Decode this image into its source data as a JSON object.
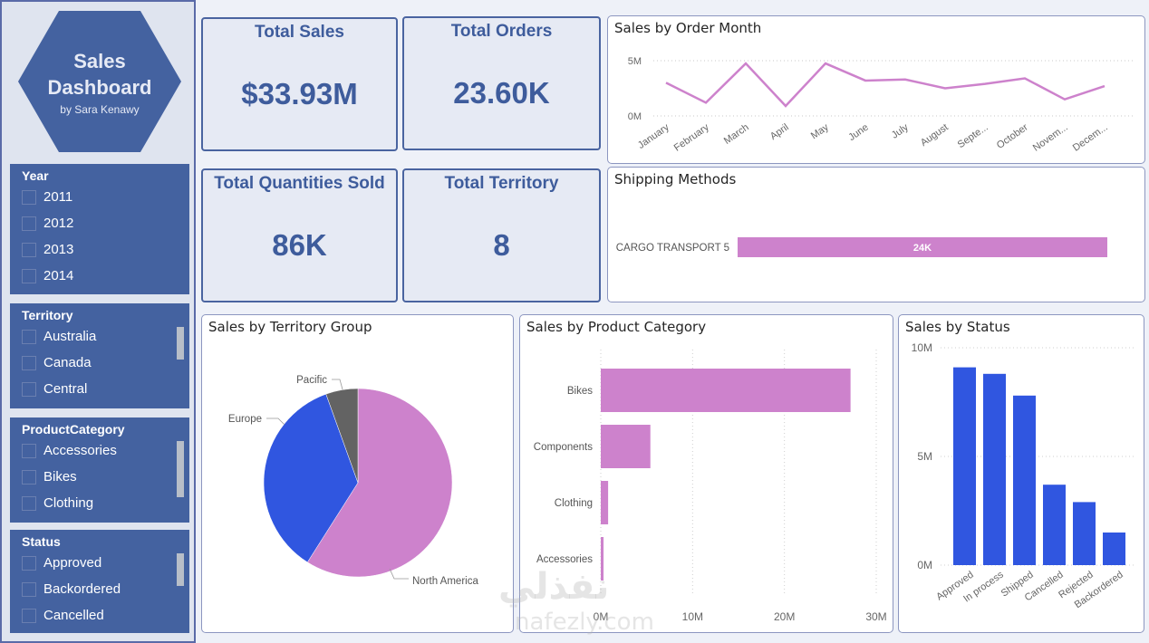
{
  "brand": {
    "title_line1": "Sales",
    "title_line2": "Dashboard",
    "author": "by Sara Kenawy"
  },
  "slicers": [
    {
      "title": "Year",
      "items": [
        "2011",
        "2012",
        "2013",
        "2014"
      ],
      "scroll": false
    },
    {
      "title": "Territory",
      "items": [
        "Australia",
        "Canada",
        "Central"
      ],
      "scroll": true
    },
    {
      "title": "ProductCategory",
      "items": [
        "Accessories",
        "Bikes",
        "Clothing"
      ],
      "scroll": true
    },
    {
      "title": "Status",
      "items": [
        "Approved",
        "Backordered",
        "Cancelled"
      ],
      "scroll": true
    }
  ],
  "kpis": [
    {
      "label": "Total Sales",
      "value": "$33.93M"
    },
    {
      "label": "Total Orders",
      "value": "23.60K"
    },
    {
      "label": "Total Quantities Sold",
      "value": "86K"
    },
    {
      "label": "Total Territory",
      "value": "8"
    }
  ],
  "colors": {
    "accent": "#cd82cc",
    "blue": "#3056e0",
    "gray": "#636363",
    "brand": "#4462a0"
  },
  "watermark": {
    "arabic": "نفذلي",
    "latin": "nafezly.com"
  },
  "chart_data": [
    {
      "type": "line",
      "title": "Sales by Order Month",
      "x": [
        "January",
        "February",
        "March",
        "April",
        "May",
        "June",
        "July",
        "August",
        "Septe...",
        "October",
        "Novem...",
        "Decem..."
      ],
      "values": [
        3.0,
        1.2,
        4.75,
        0.9,
        4.75,
        3.2,
        3.3,
        2.5,
        2.9,
        3.4,
        1.5,
        2.7
      ],
      "unit": "M",
      "yticks": [
        "0M",
        "5M"
      ],
      "ylim": [
        0,
        5
      ],
      "grid": true
    },
    {
      "type": "bar",
      "orientation": "horizontal",
      "title": "Shipping Methods",
      "categories": [
        "CARGO TRANSPORT 5"
      ],
      "values": [
        24
      ],
      "data_labels": [
        "24K"
      ],
      "unit": "K"
    },
    {
      "type": "pie",
      "title": "Sales by Territory Group",
      "categories": [
        "North America",
        "Europe",
        "Pacific"
      ],
      "values": [
        59,
        35.5,
        5.5
      ],
      "unit": "%"
    },
    {
      "type": "bar",
      "orientation": "horizontal",
      "title": "Sales by Product Category",
      "categories": [
        "Bikes",
        "Components",
        "Clothing",
        "Accessories"
      ],
      "values": [
        27.2,
        5.4,
        0.8,
        0.3
      ],
      "unit": "M",
      "xticks": [
        "0M",
        "10M",
        "20M",
        "30M"
      ],
      "xlim": [
        0,
        30
      ],
      "grid": true
    },
    {
      "type": "bar",
      "orientation": "vertical",
      "title": "Sales by Status",
      "categories": [
        "Approved",
        "In process",
        "Shipped",
        "Cancelled",
        "Rejected",
        "Backordered"
      ],
      "values": [
        9.1,
        8.8,
        7.8,
        3.7,
        2.9,
        1.5
      ],
      "unit": "M",
      "yticks": [
        "0M",
        "5M",
        "10M"
      ],
      "ylim": [
        0,
        10
      ],
      "grid": true
    }
  ]
}
